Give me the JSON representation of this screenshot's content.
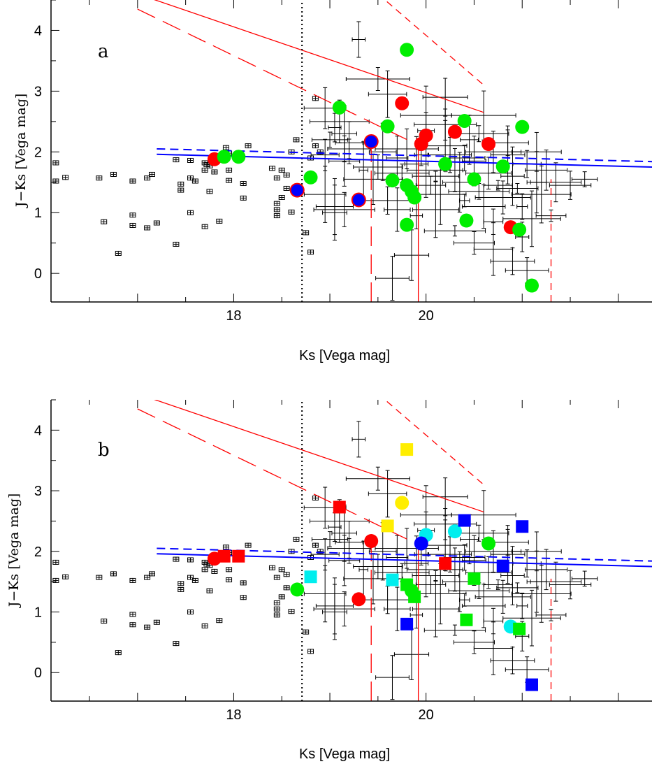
{
  "chart_data": [
    {
      "type": "scatter",
      "panel_label": "a",
      "xlabel": "Ks  [Vega mag]",
      "ylabel": "J−Ks  [Vega mag]",
      "xlim": [
        16.1,
        22.35
      ],
      "ylim": [
        -0.47,
        4.5
      ],
      "xticks": [
        18,
        20
      ],
      "yticks": [
        0,
        1,
        2,
        3,
        4
      ],
      "grid": false,
      "lines": [
        {
          "style": "solid",
          "color": "#ff0000",
          "points": [
            [
              17.0,
              4.6
            ],
            [
              20.6,
              2.65
            ]
          ]
        },
        {
          "style": "long-dash",
          "color": "#ff0000",
          "points": [
            [
              17.0,
              4.35
            ],
            [
              20.0,
              2.05
            ]
          ]
        },
        {
          "style": "short-dash",
          "color": "#ff0000",
          "points": [
            [
              19.5,
              4.6
            ],
            [
              20.6,
              3.1
            ]
          ]
        },
        {
          "style": "long-dash",
          "color": "#ff0000",
          "points": [
            [
              19.43,
              -0.47
            ],
            [
              19.43,
              2.2
            ]
          ]
        },
        {
          "style": "solid",
          "color": "#ff0000",
          "points": [
            [
              19.92,
              -0.47
            ],
            [
              19.92,
              2.1
            ]
          ]
        },
        {
          "style": "short-dash",
          "color": "#ff0000",
          "points": [
            [
              21.3,
              -0.47
            ],
            [
              21.3,
              1.55
            ]
          ]
        },
        {
          "style": "dotted",
          "color": "#000000",
          "points": [
            [
              18.71,
              -0.47
            ],
            [
              18.71,
              4.5
            ]
          ]
        },
        {
          "style": "solid",
          "color": "#0000ff",
          "points": [
            [
              17.2,
              1.96
            ],
            [
              22.35,
              1.75
            ]
          ]
        },
        {
          "style": "dashed",
          "color": "#0000ff",
          "points": [
            [
              17.2,
              2.05
            ],
            [
              22.35,
              1.84
            ]
          ]
        }
      ],
      "markers": [
        {
          "shape": "circle",
          "color": "#00ee00",
          "x": 19.8,
          "y": 3.68
        },
        {
          "shape": "circle",
          "color": "#00ee00",
          "x": 19.1,
          "y": 2.73
        },
        {
          "shape": "circle",
          "color": "#ff0000",
          "x": 19.75,
          "y": 2.8
        },
        {
          "shape": "circle",
          "color": "#00ee00",
          "x": 19.6,
          "y": 2.42
        },
        {
          "shape": "circle",
          "color": "#ff0000",
          "x": 20.3,
          "y": 2.33
        },
        {
          "shape": "circle",
          "color": "#00ee00",
          "x": 20.4,
          "y": 2.51
        },
        {
          "shape": "circle",
          "color": "#ff0000",
          "x": 20.0,
          "y": 2.27
        },
        {
          "shape": "circle",
          "color": "#ff0000",
          "x": 19.95,
          "y": 2.13
        },
        {
          "shape": "circle",
          "color": "#ff0000",
          "x": 20.65,
          "y": 2.13
        },
        {
          "shape": "circle",
          "color": "#00ee00",
          "x": 21.0,
          "y": 2.41
        },
        {
          "shape": "circle-ringed",
          "color": "#0000ff",
          "ring": "#ff0000",
          "x": 19.43,
          "y": 2.17
        },
        {
          "shape": "circle",
          "color": "#00ee00",
          "x": 20.2,
          "y": 1.8
        },
        {
          "shape": "circle",
          "color": "#00ee00",
          "x": 20.8,
          "y": 1.76
        },
        {
          "shape": "circle",
          "color": "#00ee00",
          "x": 20.5,
          "y": 1.55
        },
        {
          "shape": "circle",
          "color": "#00ee00",
          "x": 19.65,
          "y": 1.53
        },
        {
          "shape": "circle",
          "color": "#00ee00",
          "x": 19.8,
          "y": 1.45
        },
        {
          "shape": "circle",
          "color": "#00ee00",
          "x": 19.85,
          "y": 1.35
        },
        {
          "shape": "circle",
          "color": "#00ee00",
          "x": 19.88,
          "y": 1.25
        },
        {
          "shape": "circle",
          "color": "#00ee00",
          "x": 18.8,
          "y": 1.58
        },
        {
          "shape": "circle-ringed",
          "color": "#0000ff",
          "ring": "#ff0000",
          "x": 18.66,
          "y": 1.37
        },
        {
          "shape": "circle-ringed",
          "color": "#0000ff",
          "ring": "#ff0000",
          "x": 19.3,
          "y": 1.21
        },
        {
          "shape": "circle",
          "color": "#00ee00",
          "x": 19.8,
          "y": 0.8
        },
        {
          "shape": "circle",
          "color": "#00ee00",
          "x": 20.42,
          "y": 0.87
        },
        {
          "shape": "circle",
          "color": "#ff0000",
          "x": 20.88,
          "y": 0.76
        },
        {
          "shape": "circle",
          "color": "#00ee00",
          "x": 20.97,
          "y": 0.72
        },
        {
          "shape": "circle",
          "color": "#00ee00",
          "x": 21.1,
          "y": -0.2
        },
        {
          "shape": "circle",
          "color": "#ff0000",
          "x": 17.8,
          "y": 1.88
        },
        {
          "shape": "circle",
          "color": "#00ee00",
          "x": 17.9,
          "y": 1.92
        },
        {
          "shape": "circle",
          "color": "#00ee00",
          "x": 18.05,
          "y": 1.92
        }
      ]
    },
    {
      "type": "scatter",
      "panel_label": "b",
      "xlabel": "Ks  [Vega mag]",
      "ylabel": "J−Ks  [Vega mag]",
      "xlim": [
        16.1,
        22.35
      ],
      "ylim": [
        -0.47,
        4.5
      ],
      "xticks": [
        18,
        20
      ],
      "yticks": [
        0,
        1,
        2,
        3,
        4
      ],
      "grid": false,
      "lines": [
        {
          "style": "solid",
          "color": "#ff0000",
          "points": [
            [
              17.0,
              4.6
            ],
            [
              20.6,
              2.65
            ]
          ]
        },
        {
          "style": "long-dash",
          "color": "#ff0000",
          "points": [
            [
              17.0,
              4.35
            ],
            [
              20.0,
              2.05
            ]
          ]
        },
        {
          "style": "short-dash",
          "color": "#ff0000",
          "points": [
            [
              19.5,
              4.6
            ],
            [
              20.6,
              3.1
            ]
          ]
        },
        {
          "style": "long-dash",
          "color": "#ff0000",
          "points": [
            [
              19.43,
              -0.47
            ],
            [
              19.43,
              2.2
            ]
          ]
        },
        {
          "style": "solid",
          "color": "#ff0000",
          "points": [
            [
              19.92,
              -0.47
            ],
            [
              19.92,
              2.1
            ]
          ]
        },
        {
          "style": "short-dash",
          "color": "#ff0000",
          "points": [
            [
              21.3,
              -0.47
            ],
            [
              21.3,
              1.55
            ]
          ]
        },
        {
          "style": "dotted",
          "color": "#000000",
          "points": [
            [
              18.71,
              -0.47
            ],
            [
              18.71,
              4.5
            ]
          ]
        },
        {
          "style": "solid",
          "color": "#0000ff",
          "points": [
            [
              17.2,
              1.96
            ],
            [
              22.35,
              1.75
            ]
          ]
        },
        {
          "style": "dashed",
          "color": "#0000ff",
          "points": [
            [
              17.2,
              2.05
            ],
            [
              22.35,
              1.84
            ]
          ]
        }
      ],
      "markers": [
        {
          "shape": "square",
          "color": "#ffee00",
          "x": 19.8,
          "y": 3.68
        },
        {
          "shape": "square",
          "color": "#ff0000",
          "x": 19.1,
          "y": 2.73
        },
        {
          "shape": "circle",
          "color": "#ffee00",
          "x": 19.75,
          "y": 2.8
        },
        {
          "shape": "square",
          "color": "#ffee00",
          "x": 19.6,
          "y": 2.42
        },
        {
          "shape": "circle",
          "color": "#00eeee",
          "x": 20.3,
          "y": 2.33
        },
        {
          "shape": "square",
          "color": "#0000ff",
          "x": 20.4,
          "y": 2.51
        },
        {
          "shape": "circle",
          "color": "#00eeee",
          "x": 20.0,
          "y": 2.27
        },
        {
          "shape": "circle",
          "color": "#0000ff",
          "x": 19.95,
          "y": 2.13
        },
        {
          "shape": "circle",
          "color": "#00ee00",
          "x": 20.65,
          "y": 2.13
        },
        {
          "shape": "square",
          "color": "#0000ff",
          "x": 21.0,
          "y": 2.41
        },
        {
          "shape": "circle",
          "color": "#ff0000",
          "x": 19.43,
          "y": 2.17
        },
        {
          "shape": "square",
          "color": "#ff0000",
          "x": 20.2,
          "y": 1.8
        },
        {
          "shape": "square",
          "color": "#0000ff",
          "x": 20.8,
          "y": 1.76
        },
        {
          "shape": "square",
          "color": "#00ee00",
          "x": 20.5,
          "y": 1.55
        },
        {
          "shape": "square",
          "color": "#00eeee",
          "x": 19.65,
          "y": 1.53
        },
        {
          "shape": "square",
          "color": "#00ee00",
          "x": 19.8,
          "y": 1.45
        },
        {
          "shape": "circle",
          "color": "#00ee00",
          "x": 19.85,
          "y": 1.35
        },
        {
          "shape": "square",
          "color": "#00ee00",
          "x": 19.88,
          "y": 1.25
        },
        {
          "shape": "square",
          "color": "#00eeee",
          "x": 18.8,
          "y": 1.58
        },
        {
          "shape": "circle",
          "color": "#00ee00",
          "x": 18.66,
          "y": 1.37
        },
        {
          "shape": "circle",
          "color": "#ff0000",
          "x": 19.3,
          "y": 1.21
        },
        {
          "shape": "square",
          "color": "#0000ff",
          "x": 19.8,
          "y": 0.8
        },
        {
          "shape": "square",
          "color": "#00ee00",
          "x": 20.42,
          "y": 0.87
        },
        {
          "shape": "circle",
          "color": "#00eeee",
          "x": 20.88,
          "y": 0.76
        },
        {
          "shape": "square",
          "color": "#00ee00",
          "x": 20.97,
          "y": 0.72
        },
        {
          "shape": "square",
          "color": "#0000ff",
          "x": 21.1,
          "y": -0.2
        },
        {
          "shape": "circle",
          "color": "#ff0000",
          "x": 17.8,
          "y": 1.88
        },
        {
          "shape": "square",
          "color": "#ff0000",
          "x": 17.9,
          "y": 1.92
        },
        {
          "shape": "square",
          "color": "#ff0000",
          "x": 18.05,
          "y": 1.92
        }
      ]
    }
  ],
  "background_points": [
    [
      16.15,
      1.82
    ],
    [
      16.25,
      1.58
    ],
    [
      16.15,
      1.52
    ],
    [
      16.6,
      1.57
    ],
    [
      16.75,
      1.63
    ],
    [
      16.95,
      1.52
    ],
    [
      17.1,
      1.57
    ],
    [
      17.15,
      1.63
    ],
    [
      17.4,
      1.87
    ],
    [
      17.55,
      1.86
    ],
    [
      17.7,
      1.82
    ],
    [
      17.72,
      1.79
    ],
    [
      17.95,
      1.98
    ],
    [
      17.92,
      2.07
    ],
    [
      18.15,
      2.1
    ],
    [
      17.45,
      1.37
    ],
    [
      17.45,
      1.47
    ],
    [
      17.55,
      1.57
    ],
    [
      17.6,
      1.52
    ],
    [
      17.8,
      1.67
    ],
    [
      17.7,
      1.7
    ],
    [
      17.75,
      1.77
    ],
    [
      17.95,
      1.7
    ],
    [
      17.95,
      1.53
    ],
    [
      18.1,
      1.48
    ],
    [
      18.1,
      1.24
    ],
    [
      17.75,
      1.35
    ],
    [
      17.55,
      1.0
    ],
    [
      17.85,
      0.86
    ],
    [
      17.7,
      0.77
    ],
    [
      17.4,
      0.48
    ],
    [
      17.2,
      0.83
    ],
    [
      17.1,
      0.75
    ],
    [
      16.95,
      0.79
    ],
    [
      16.95,
      0.96
    ],
    [
      16.65,
      0.85
    ],
    [
      16.8,
      0.33
    ],
    [
      18.4,
      1.73
    ],
    [
      18.5,
      1.7
    ],
    [
      18.45,
      1.57
    ],
    [
      18.55,
      1.62
    ],
    [
      18.55,
      1.4
    ],
    [
      18.5,
      1.25
    ],
    [
      18.45,
      1.15
    ],
    [
      18.45,
      1.05
    ],
    [
      18.45,
      0.95
    ],
    [
      18.6,
      1.01
    ],
    [
      18.6,
      2.0
    ],
    [
      18.65,
      2.2
    ],
    [
      18.8,
      1.9
    ],
    [
      18.85,
      2.1
    ],
    [
      18.9,
      2.0
    ],
    [
      18.95,
      1.95
    ],
    [
      19.0,
      2.2
    ],
    [
      19.05,
      2.4
    ],
    [
      19.1,
      2.5
    ],
    [
      19.15,
      2.3
    ],
    [
      19.2,
      2.15
    ],
    [
      19.2,
      2.05
    ],
    [
      18.95,
      1.3
    ],
    [
      19.05,
      1.1
    ],
    [
      19.05,
      1.0
    ],
    [
      19.15,
      1.05
    ],
    [
      18.75,
      0.67
    ],
    [
      18.8,
      0.35
    ],
    [
      18.85,
      2.88
    ],
    [
      19.3,
      3.85
    ],
    [
      19.5,
      3.2
    ],
    [
      19.6,
      2.95
    ],
    [
      19.15,
      1.85
    ],
    [
      18.95,
      2.72
    ],
    [
      19.65,
      -0.08
    ],
    [
      19.85,
      0.3
    ],
    [
      19.35,
      1.7
    ],
    [
      19.5,
      1.75
    ],
    [
      19.55,
      2.0
    ],
    [
      19.7,
      1.9
    ],
    [
      19.75,
      1.65
    ],
    [
      19.8,
      2.05
    ],
    [
      19.9,
      1.8
    ],
    [
      19.95,
      1.95
    ],
    [
      20.0,
      1.7
    ],
    [
      20.05,
      1.45
    ],
    [
      20.1,
      1.6
    ],
    [
      20.15,
      1.3
    ],
    [
      20.2,
      2.1
    ],
    [
      20.25,
      1.95
    ],
    [
      20.3,
      1.7
    ],
    [
      20.35,
      1.5
    ],
    [
      20.4,
      1.9
    ],
    [
      20.45,
      2.2
    ],
    [
      20.5,
      1.85
    ],
    [
      20.55,
      1.35
    ],
    [
      20.6,
      1.1
    ],
    [
      20.65,
      1.65
    ],
    [
      20.7,
      2.0
    ],
    [
      20.75,
      1.45
    ],
    [
      20.8,
      1.25
    ],
    [
      20.85,
      1.95
    ],
    [
      20.9,
      1.6
    ],
    [
      20.95,
      1.4
    ],
    [
      21.0,
      1.1
    ],
    [
      21.05,
      1.8
    ],
    [
      21.1,
      0.9
    ],
    [
      21.15,
      1.5
    ],
    [
      21.2,
      1.3
    ],
    [
      20.2,
      2.9
    ],
    [
      20.0,
      2.6
    ],
    [
      19.9,
      0.95
    ],
    [
      20.1,
      1.05
    ],
    [
      20.3,
      0.7
    ],
    [
      20.5,
      0.5
    ],
    [
      20.7,
      0.4
    ],
    [
      20.9,
      0.2
    ],
    [
      21.05,
      0.05
    ],
    [
      20.2,
      2.45
    ],
    [
      20.55,
      2.3
    ],
    [
      20.4,
      1.2
    ],
    [
      19.6,
      1.2
    ],
    [
      19.45,
      1.55
    ],
    [
      19.7,
      1.05
    ],
    [
      20.0,
      2.35
    ],
    [
      20.6,
      2.6
    ],
    [
      20.85,
      2.15
    ],
    [
      21.15,
      2.0
    ],
    [
      21.25,
      1.7
    ],
    [
      21.35,
      1.5
    ],
    [
      21.5,
      1.45
    ],
    [
      21.65,
      1.55
    ],
    [
      20.7,
      0.85
    ],
    [
      21.0,
      0.6
    ],
    [
      21.3,
      0.95
    ]
  ]
}
